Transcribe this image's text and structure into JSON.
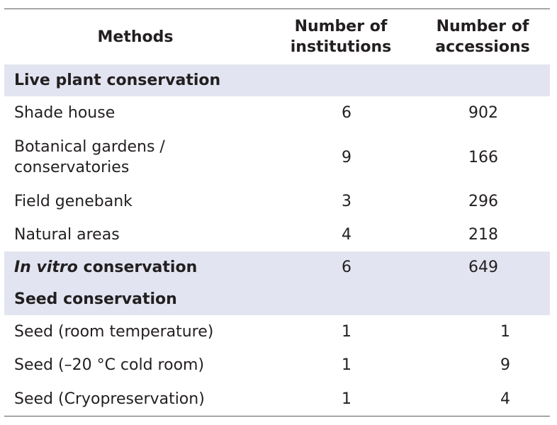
{
  "table": {
    "headers": {
      "methods": "Methods",
      "institutions_line1": "Number of",
      "institutions_line2": "institutions",
      "accessions_line1": "Number of",
      "accessions_line2": "accessions"
    },
    "sections": {
      "live_plant": "Live plant conservation",
      "in_vitro_italic": "In vitro",
      "in_vitro_rest": " conservation",
      "in_vitro_institutions": "6",
      "in_vitro_accessions": "649",
      "seed": "Seed conservation"
    },
    "live_plant_rows": [
      {
        "method": "Shade house",
        "institutions": "6",
        "accessions": "902"
      },
      {
        "method_line1": "Botanical gardens /",
        "method_line2": "conservatories",
        "institutions": "9",
        "accessions": "166"
      },
      {
        "method": "Field genebank",
        "institutions": "3",
        "accessions": "296"
      },
      {
        "method": "Natural areas",
        "institutions": "4",
        "accessions": "218"
      }
    ],
    "seed_rows": [
      {
        "method": "Seed (room temperature)",
        "institutions": "1",
        "accessions": "1"
      },
      {
        "method": "Seed (–20 °C cold room)",
        "institutions": "1",
        "accessions": "9"
      },
      {
        "method": "Seed (Cryopreservation)",
        "institutions": "1",
        "accessions": "4"
      }
    ]
  }
}
